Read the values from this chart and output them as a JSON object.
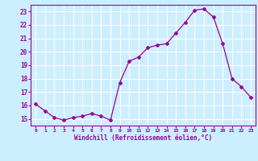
{
  "x": [
    0,
    1,
    2,
    3,
    4,
    5,
    6,
    7,
    8,
    9,
    10,
    11,
    12,
    13,
    14,
    15,
    16,
    17,
    18,
    19,
    20,
    21,
    22,
    23
  ],
  "y": [
    16.1,
    15.6,
    15.1,
    14.9,
    15.1,
    15.2,
    15.4,
    15.2,
    14.9,
    17.7,
    19.3,
    19.6,
    20.3,
    20.5,
    20.6,
    21.4,
    22.2,
    23.1,
    23.2,
    22.6,
    20.6,
    18.0,
    17.4,
    16.6
  ],
  "line_color": "#990099",
  "marker": "D",
  "marker_size": 2.0,
  "background_color": "#cceeff",
  "grid_color": "#ffffff",
  "xlabel": "Windchill (Refroidissement éolien,°C)",
  "xlabel_color": "#990099",
  "tick_color": "#990099",
  "ylim": [
    14.5,
    23.5
  ],
  "xlim": [
    -0.5,
    23.5
  ],
  "yticks": [
    15,
    16,
    17,
    18,
    19,
    20,
    21,
    22,
    23
  ],
  "xticks": [
    0,
    1,
    2,
    3,
    4,
    5,
    6,
    7,
    8,
    9,
    10,
    11,
    12,
    13,
    14,
    15,
    16,
    17,
    18,
    19,
    20,
    21,
    22,
    23
  ],
  "xtick_labels": [
    "0",
    "1",
    "2",
    "3",
    "4",
    "5",
    "6",
    "7",
    "8",
    "9",
    "10",
    "11",
    "12",
    "13",
    "14",
    "15",
    "16",
    "17",
    "18",
    "19",
    "20",
    "21",
    "22",
    "23"
  ]
}
